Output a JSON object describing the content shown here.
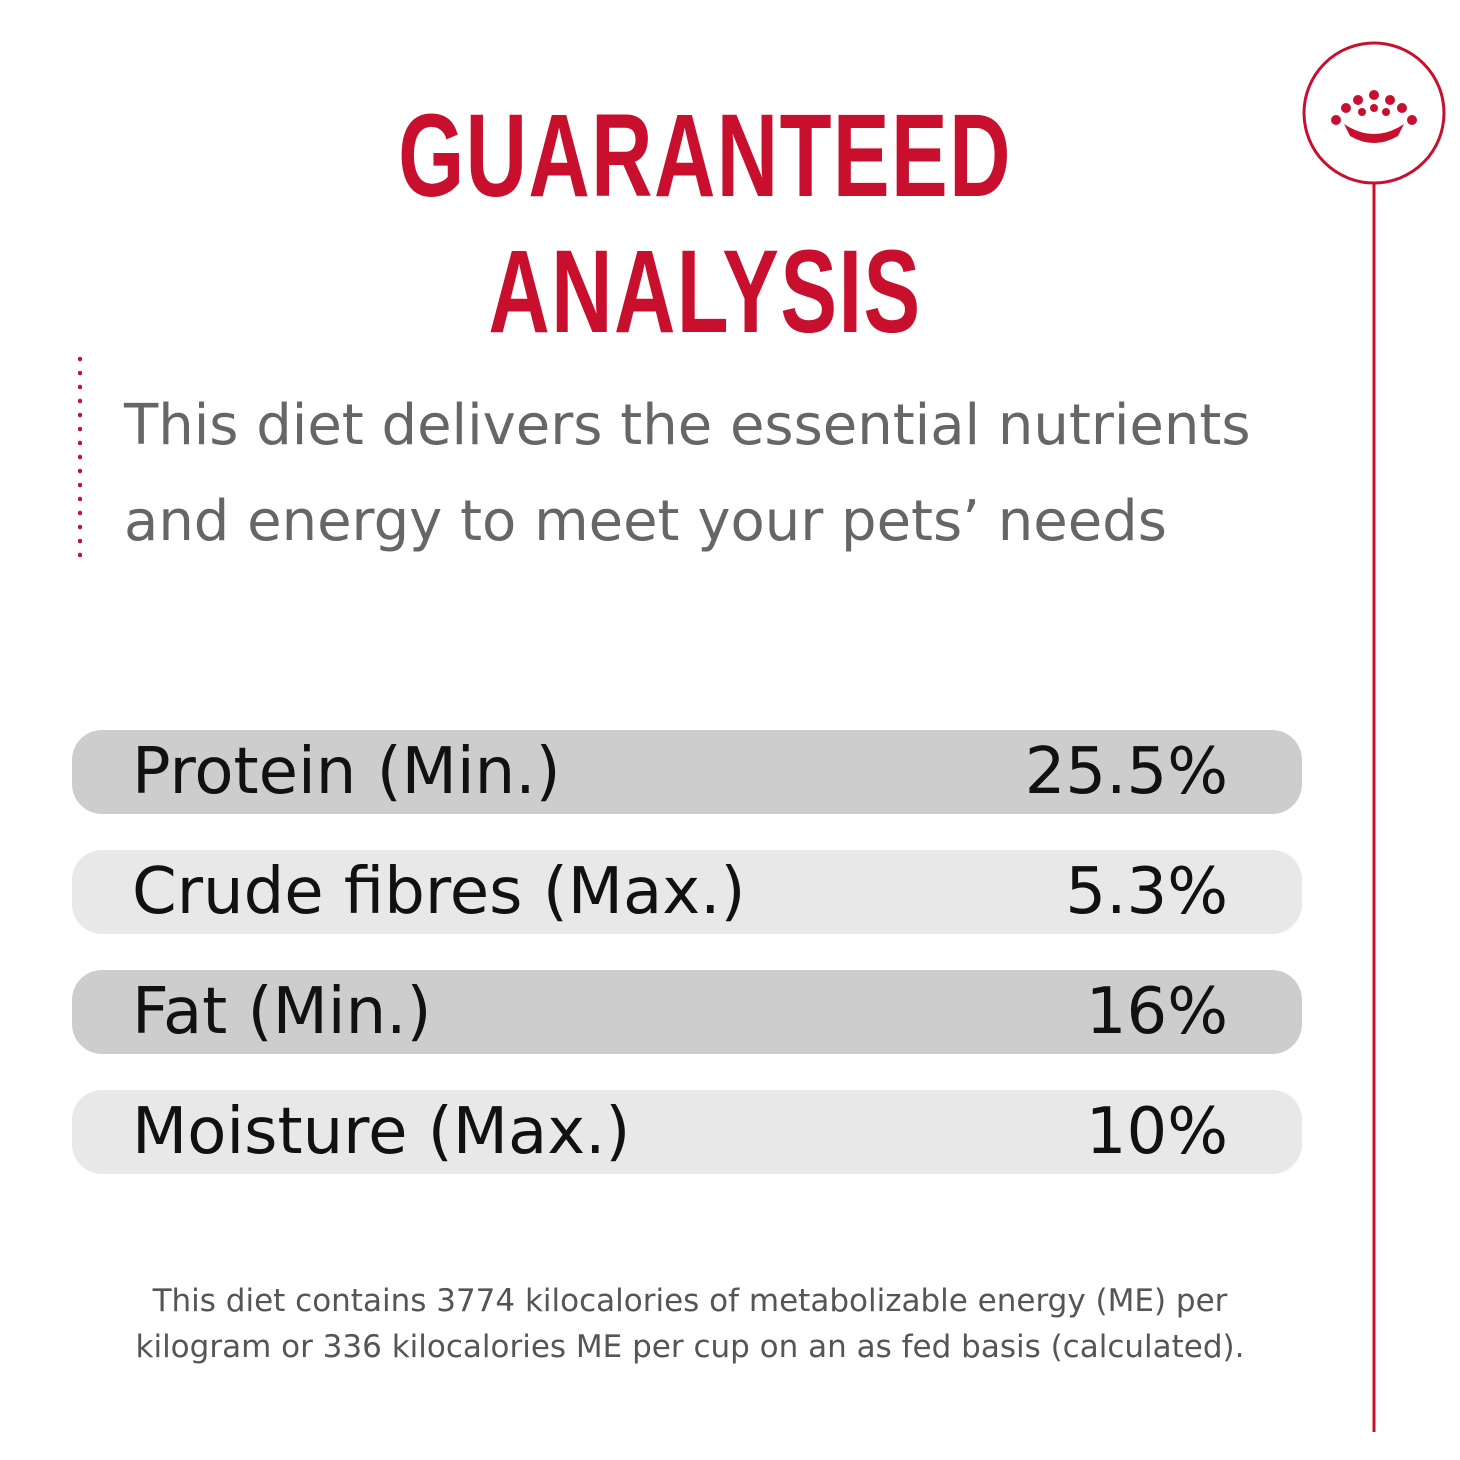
{
  "title": "GUARANTEED ANALYSIS",
  "intro": [
    "This diet delivers the essential nutrients",
    "and energy to meet your pets’ needs"
  ],
  "table": {
    "rows": [
      [
        "Protein (Min.)",
        "25.5%"
      ],
      [
        "Crude fibres (Max.)",
        "5.3%"
      ],
      [
        "Fat (Min.)",
        "16%"
      ],
      [
        "Moisture (Max.)",
        "10%"
      ]
    ]
  },
  "footnote": [
    "This diet contains 3774 kilocalories of metabolizable energy (ME) per",
    "kilogram or 336 kilocalories ME per cup on an as fed basis (calculated)."
  ]
}
